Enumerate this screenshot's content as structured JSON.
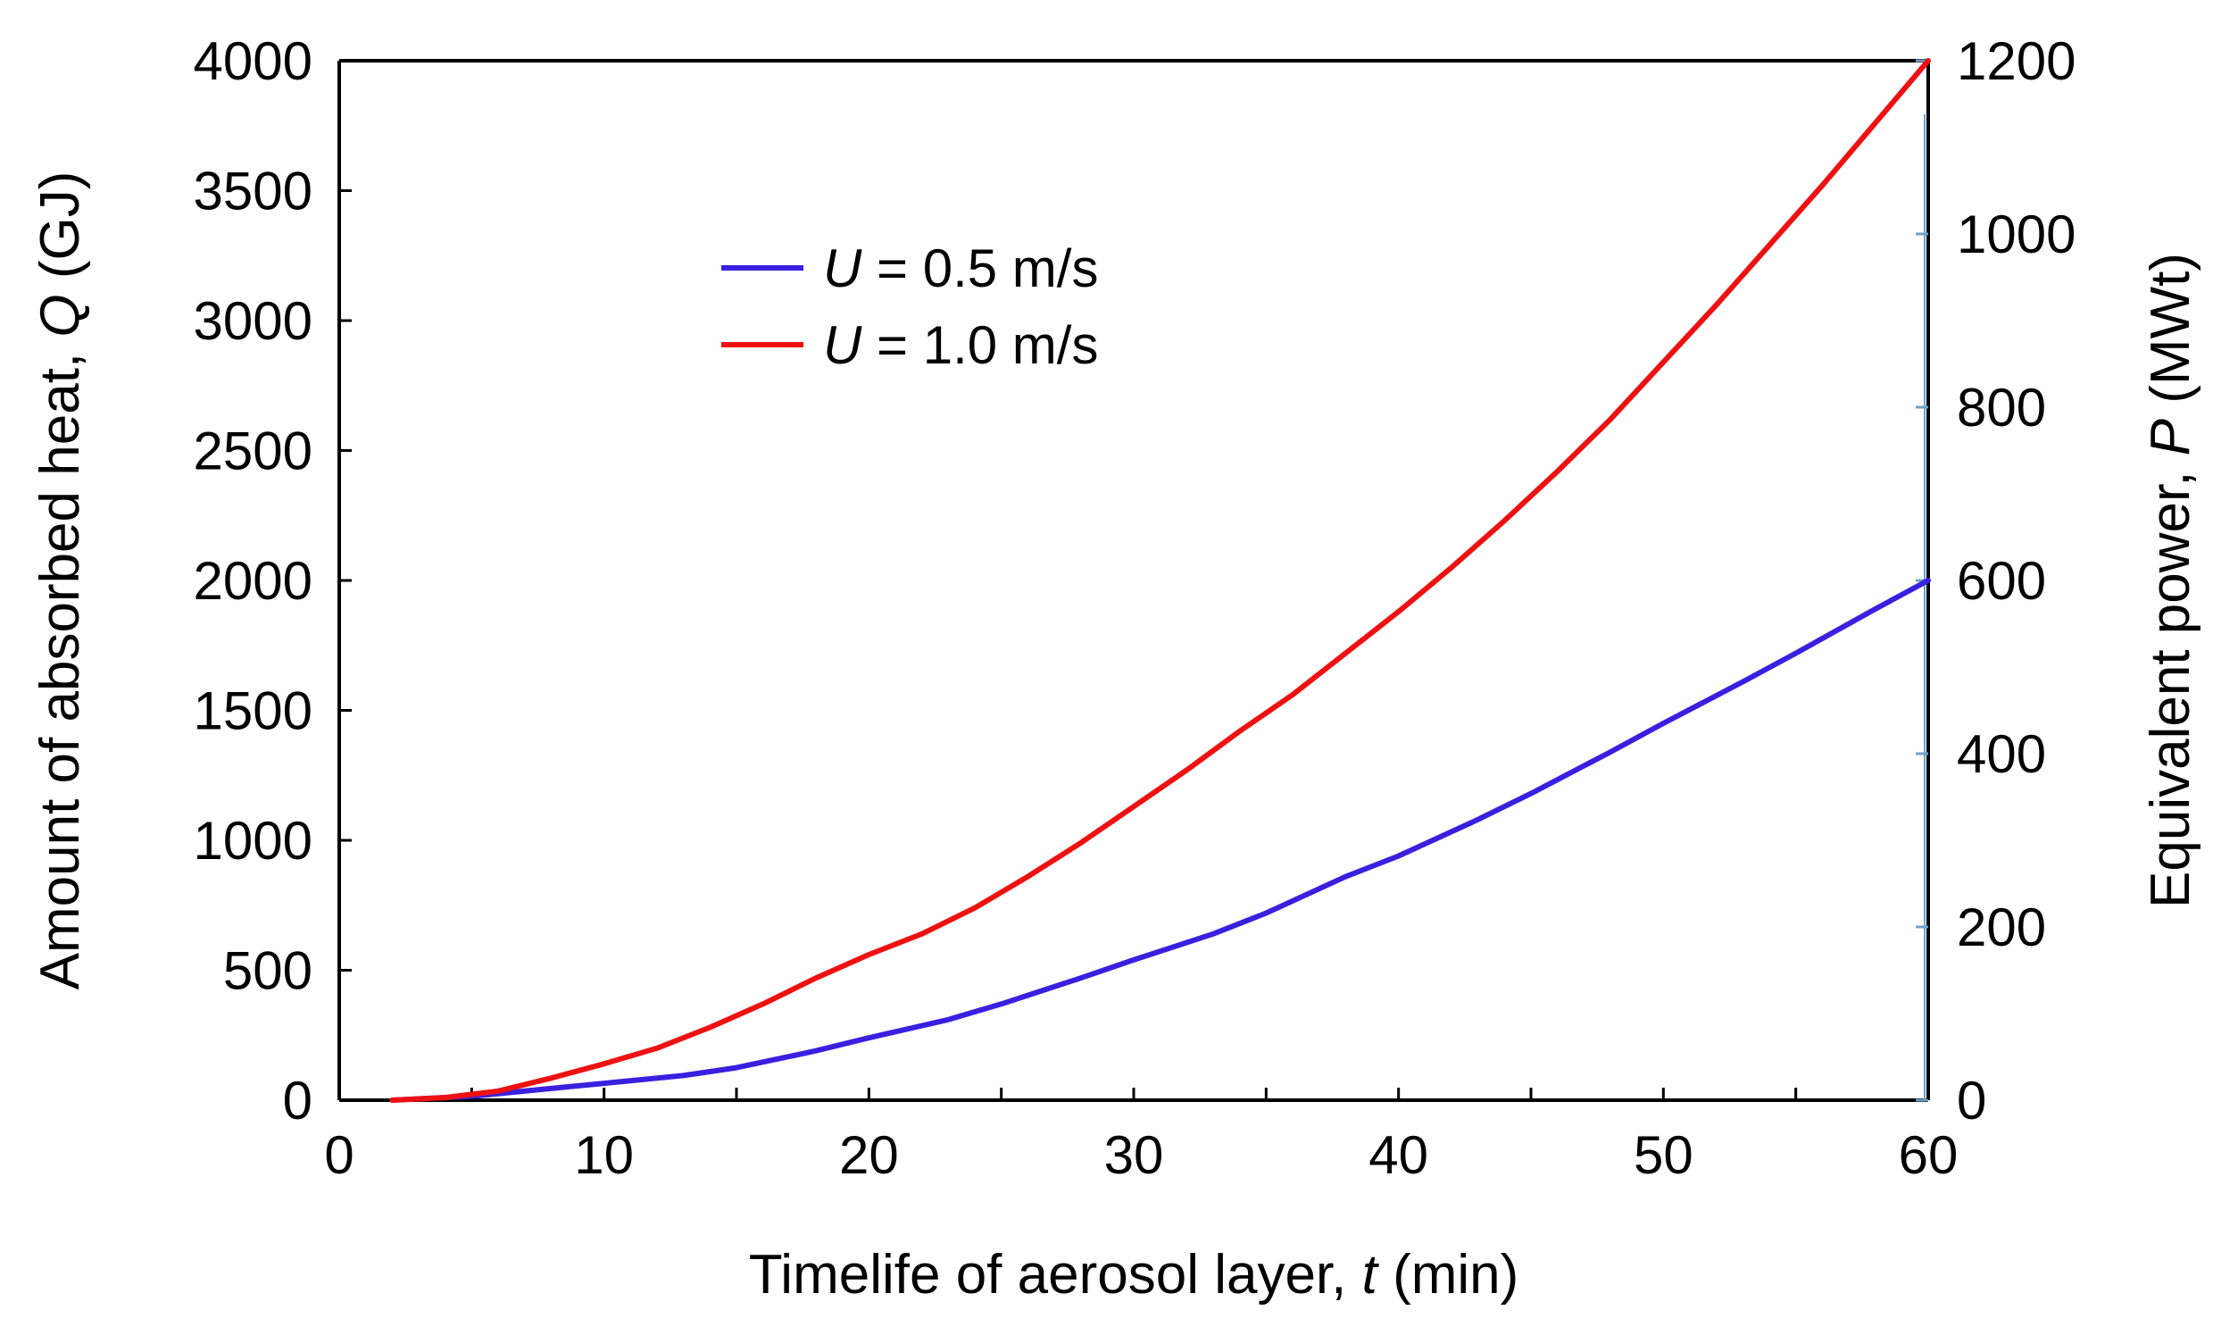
{
  "chart_data": {
    "type": "line",
    "title": "",
    "xlabel": {
      "pre": "Timelife of aerosol layer, ",
      "var": "t",
      "post": " (min)"
    },
    "ylabel": {
      "pre": "Amount of absorbed heat, ",
      "var": "Q",
      "post": " (GJ)"
    },
    "y2label": {
      "pre": "Equivalent power, ",
      "var": "P",
      "post": " (MWt)"
    },
    "xlim": [
      0,
      60
    ],
    "ylim": [
      0,
      4000
    ],
    "y2lim": [
      0,
      1200
    ],
    "xticks": [
      "0",
      "10",
      "20",
      "30",
      "40",
      "50",
      "60"
    ],
    "yticks": [
      "0",
      "500",
      "1000",
      "1500",
      "2000",
      "2500",
      "3000",
      "3500",
      "4000"
    ],
    "y2ticks": [
      "0",
      "200",
      "400",
      "600",
      "800",
      "1000",
      "1200"
    ],
    "grid": false,
    "legend_position": "top-left",
    "series": [
      {
        "name": "U = 0.5 m/s",
        "legend_var": "U",
        "legend_rest": " = 0.5 m/s",
        "color": "#3a1fe0",
        "x": [
          2,
          5,
          8,
          10,
          13,
          15,
          18,
          20,
          23,
          25,
          28,
          30,
          33,
          35,
          38,
          40,
          43,
          45,
          48,
          50,
          53,
          55,
          58,
          60
        ],
        "y": [
          0,
          15,
          45,
          65,
          95,
          125,
          190,
          240,
          310,
          370,
          470,
          540,
          640,
          720,
          860,
          940,
          1080,
          1180,
          1340,
          1450,
          1610,
          1720,
          1890,
          2000
        ]
      },
      {
        "name": "U = 1.0 m/s",
        "legend_var": "U",
        "legend_rest": " = 1.0 m/s",
        "color": "#ee1111",
        "x": [
          2,
          4,
          6,
          8,
          10,
          12,
          14,
          16,
          18,
          20,
          22,
          24,
          26,
          28,
          30,
          32,
          34,
          36,
          38,
          40,
          42,
          44,
          46,
          48,
          50,
          52,
          54,
          56,
          58,
          60
        ],
        "y": [
          0,
          10,
          35,
          85,
          140,
          200,
          280,
          370,
          470,
          560,
          640,
          740,
          860,
          990,
          1130,
          1270,
          1420,
          1560,
          1720,
          1880,
          2050,
          2230,
          2420,
          2620,
          2840,
          3060,
          3290,
          3520,
          3760,
          4000
        ]
      }
    ]
  }
}
